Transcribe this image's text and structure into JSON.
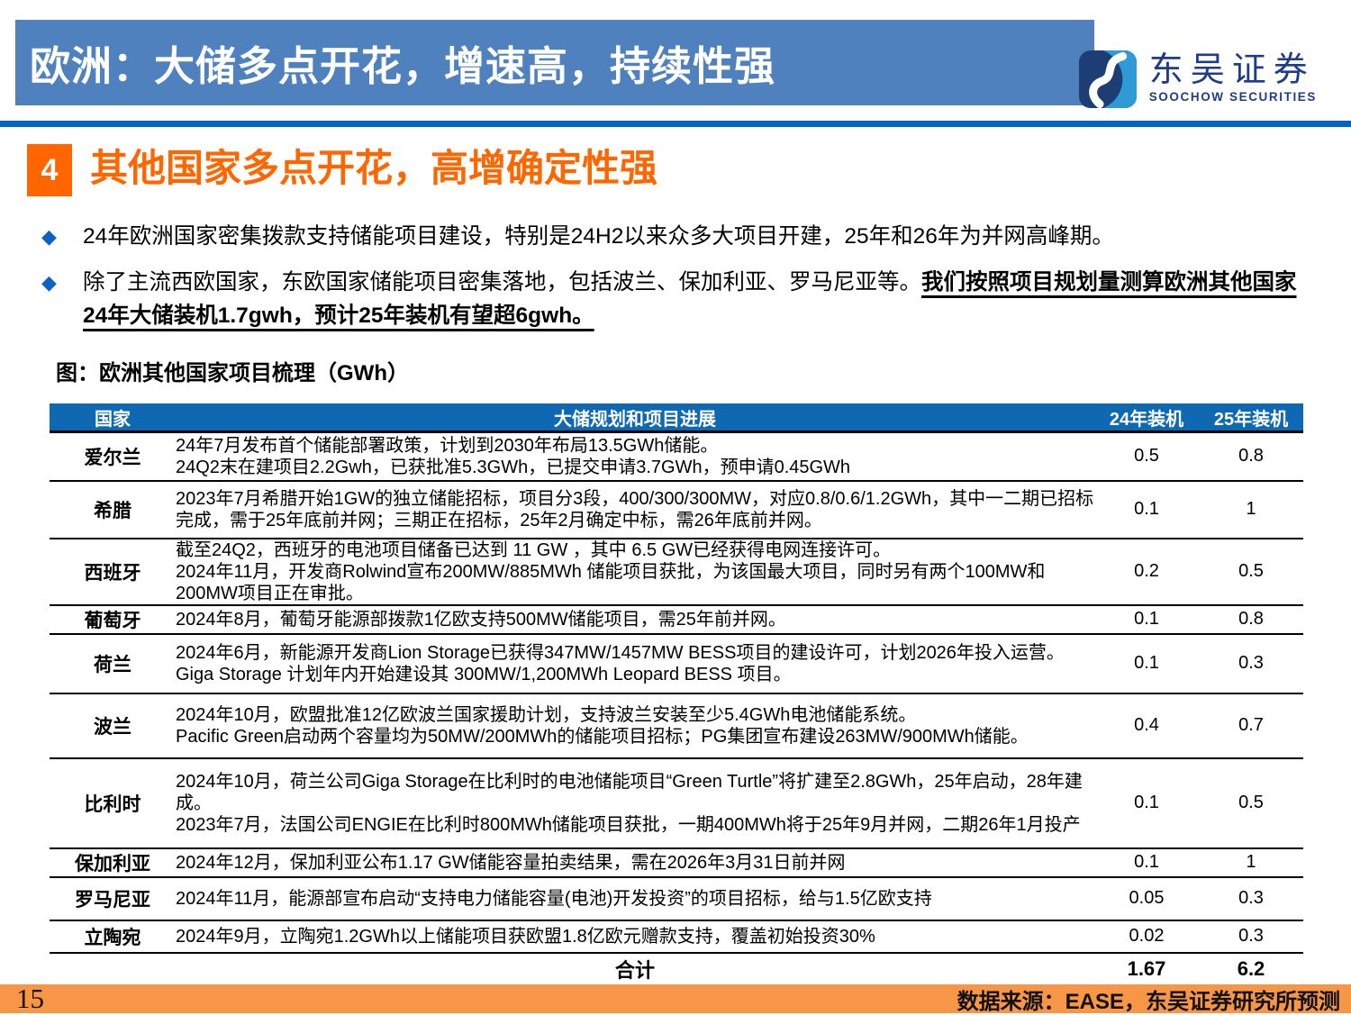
{
  "banner": {
    "title": "欧洲：大储多点开花，增速高，持续性强"
  },
  "logo": {
    "cn": "东吴证券",
    "en": "SOOCHOW SECURITIES"
  },
  "section": {
    "number": "4",
    "heading": "其他国家多点开花，高增确定性强"
  },
  "bullets": [
    {
      "text": "24年欧洲国家密集拨款支持储能项目建设，特别是24H2以来众多大项目开建，25年和26年为并网高峰期。",
      "emphasis": ""
    },
    {
      "text": "除了主流西欧国家，东欧国家储能项目密集落地，包括波兰、保加利亚、罗马尼亚等。",
      "emphasis": "我们按照项目规划量测算欧洲其他国家24年大储装机1.7gwh，预计25年装机有望超6gwh。"
    }
  ],
  "figure_title": "图：欧洲其他国家项目梳理（GWh）",
  "table": {
    "headers": [
      "国家",
      "大储规划和项目进展",
      "24年装机",
      "25年装机"
    ],
    "rows": [
      {
        "country": "爱尔兰",
        "desc": "24年7月发布首个储能部署政策，计划到2030年布局13.5GWh储能。\n24Q2末在建项目2.2Gwh，已获批准5.3GWh，已提交申请3.7GWh，预申请0.45GWh",
        "y2024": "0.5",
        "y2025": "0.8"
      },
      {
        "country": "希腊",
        "desc": "2023年7月希腊开始1GW的独立储能招标，项目分3段，400/300/300MW，对应0.8/0.6/1.2GWh，其中一二期已招标完成，需于25年底前并网；三期正在招标，25年2月确定中标，需26年底前并网。",
        "y2024": "0.1",
        "y2025": "1"
      },
      {
        "country": "西班牙",
        "desc": "截至24Q2，西班牙的电池项目储备已达到 11 GW ，其中 6.5 GW已经获得电网连接许可。\n2024年11月，开发商Rolwind宣布200MW/885MWh 储能项目获批，为该国最大项目，同时另有两个100MW和200MW项目正在审批。",
        "y2024": "0.2",
        "y2025": "0.5"
      },
      {
        "country": "葡萄牙",
        "desc": "2024年8月，葡萄牙能源部拨款1亿欧支持500MW储能项目，需25年前并网。",
        "y2024": "0.1",
        "y2025": "0.8"
      },
      {
        "country": "荷兰",
        "desc": "2024年6月，新能源开发商Lion Storage已获得347MW/1457MW BESS项目的建设许可，计划2026年投入运营。\nGiga Storage 计划年内开始建设其 300MW/1,200MWh Leopard BESS 项目。",
        "y2024": "0.1",
        "y2025": "0.3"
      },
      {
        "country": "波兰",
        "desc": "2024年10月，欧盟批准12亿欧波兰国家援助计划，支持波兰安装至少5.4GWh电池储能系统。\nPacific Green启动两个容量均为50MW/200MWh的储能项目招标；PG集团宣布建设263MW/900MWh储能。",
        "y2024": "0.4",
        "y2025": "0.7"
      },
      {
        "country": "比利时",
        "desc": "2024年10月，荷兰公司Giga Storage在比利时的电池储能项目“Green Turtle”将扩建至2.8GWh，25年启动，28年建成。\n2023年7月，法国公司ENGIE在比利时800MWh储能项目获批，一期400MWh将于25年9月并网，二期26年1月投产",
        "y2024": "0.1",
        "y2025": "0.5"
      },
      {
        "country": "保加利亚",
        "desc": "2024年12月，保加利亚公布1.17 GW储能容量拍卖结果，需在2026年3月31日前并网",
        "y2024": "0.1",
        "y2025": "1"
      },
      {
        "country": "罗马尼亚",
        "desc": "2024年11月，能源部宣布启动“支持电力储能容量(电池)开发投资”的项目招标，给与1.5亿欧支持",
        "y2024": "0.05",
        "y2025": "0.3"
      },
      {
        "country": "立陶宛",
        "desc": "2024年9月，立陶宛1.2GWh以上储能项目获欧盟1.8亿欧元赠款支持，覆盖初始投资30%",
        "y2024": "0.02",
        "y2025": "0.3"
      }
    ],
    "total": {
      "label": "合计",
      "y2024": "1.67",
      "y2025": "6.2"
    }
  },
  "footer": {
    "page_number": "15",
    "source": "数据来源：EASE，东吴证券研究所预测"
  },
  "colors": {
    "banner_blue": "#4E81BD",
    "divider_blue": "#0563C1",
    "table_header_blue": "#0E69B2",
    "accent_orange": "#FF6600",
    "footer_orange": "#F79646",
    "logo_navy": "#1E3C8C",
    "logo_light_blue": "#2E9AD6"
  }
}
